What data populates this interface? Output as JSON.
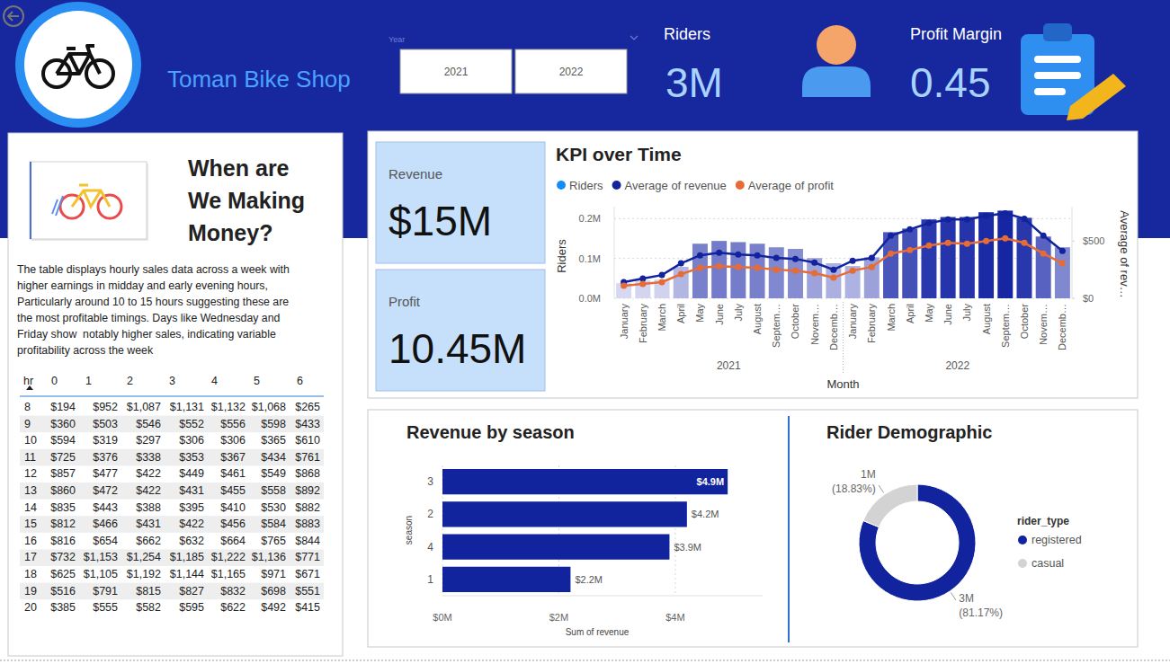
{
  "header": {
    "title": "Toman Bike Shop",
    "slicer": {
      "label": "Year",
      "options": [
        "2021",
        "2022"
      ]
    }
  },
  "kpis": [
    {
      "label": "Riders",
      "value": "3M"
    },
    {
      "label": "Profit Margin",
      "value": "0.45"
    },
    {
      "label": "Revenue",
      "value": "$15M"
    },
    {
      "label": "Profit",
      "value": "10.45M"
    }
  ],
  "panel": {
    "title": [
      "When are",
      "We Making",
      "Money?"
    ],
    "paragraph": [
      "The table displays hourly sales data across a week with",
      "higher earnings in midday and early evening hours,",
      "Particularly around 10 to 15 hours suggesting these are",
      "the most profitable timings. Days like Wednesday and",
      "Friday show  notably higher sales, indicating variable",
      "profitability across the week"
    ]
  },
  "table": {
    "columns": [
      "hr",
      "0",
      "1",
      "2",
      "3",
      "4",
      "5",
      "6"
    ],
    "rows": [
      [
        "8",
        "$194",
        "$952",
        "$1,087",
        "$1,131",
        "$1,132",
        "$1,068",
        "$265"
      ],
      [
        "9",
        "$360",
        "$503",
        "$546",
        "$552",
        "$556",
        "$598",
        "$433"
      ],
      [
        "10",
        "$594",
        "$319",
        "$297",
        "$306",
        "$306",
        "$365",
        "$610"
      ],
      [
        "11",
        "$725",
        "$376",
        "$338",
        "$353",
        "$367",
        "$434",
        "$761"
      ],
      [
        "12",
        "$857",
        "$477",
        "$422",
        "$449",
        "$461",
        "$549",
        "$868"
      ],
      [
        "13",
        "$860",
        "$472",
        "$422",
        "$431",
        "$455",
        "$558",
        "$892"
      ],
      [
        "14",
        "$835",
        "$443",
        "$388",
        "$395",
        "$410",
        "$530",
        "$882"
      ],
      [
        "15",
        "$812",
        "$466",
        "$431",
        "$422",
        "$456",
        "$584",
        "$883"
      ],
      [
        "16",
        "$816",
        "$654",
        "$662",
        "$632",
        "$664",
        "$765",
        "$844"
      ],
      [
        "17",
        "$732",
        "$1,153",
        "$1,254",
        "$1,185",
        "$1,222",
        "$1,136",
        "$771"
      ],
      [
        "18",
        "$625",
        "$1,105",
        "$1,192",
        "$1,144",
        "$1,165",
        "$971",
        "$671"
      ],
      [
        "19",
        "$516",
        "$791",
        "$815",
        "$827",
        "$832",
        "$698",
        "$551"
      ],
      [
        "20",
        "$385",
        "$555",
        "$582",
        "$595",
        "$622",
        "$492",
        "$415"
      ]
    ]
  },
  "chart_data": [
    {
      "type": "combo",
      "title": "KPI over Time",
      "categories": [
        "January",
        "February",
        "March",
        "April",
        "May",
        "June",
        "July",
        "August",
        "Septem…",
        "October",
        "Novem…",
        "Decemb…",
        "January",
        "February",
        "March",
        "April",
        "May",
        "June",
        "July",
        "August",
        "Septem…",
        "October",
        "Novem…",
        "Decemb…"
      ],
      "category_groups": [
        "2021",
        "2022"
      ],
      "x_label": "Month",
      "y_label": "Riders",
      "y2_label": "Average of rev…",
      "ylim": [
        0,
        230000
      ],
      "yticks": [
        {
          "value": 0,
          "label": "0.0M"
        },
        {
          "value": 100000,
          "label": "0.1M"
        },
        {
          "value": 200000,
          "label": "0.2M"
        }
      ],
      "y2lim": [
        0,
        800
      ],
      "y2ticks": [
        {
          "value": 0,
          "label": "$0"
        },
        {
          "value": 500,
          "label": "$500"
        }
      ],
      "grid": true,
      "legend": "top",
      "series": [
        {
          "name": "Riders",
          "type": "bar",
          "color": "#118dff",
          "colors": [
            "#d6d8f1",
            "#d2d4f0",
            "#d0d2ef",
            "#b2b6e3",
            "#7880cc",
            "#737bca",
            "#757dcb",
            "#7880cc",
            "#8088cf",
            "#858cd1",
            "#9da2db",
            "#abb0e1",
            "#aeb2e2",
            "#9ca1da",
            "#4a56bb",
            "#4350b8",
            "#2a38ad",
            "#2534ab",
            "#2534ab",
            "#1b2ba5",
            "#1626a2",
            "#2837ac",
            "#5862c0",
            "#8088cf"
          ],
          "values": [
            38000,
            45000,
            47000,
            79000,
            137000,
            144000,
            141000,
            137000,
            128000,
            124000,
            101000,
            88000,
            81000,
            103000,
            166000,
            175000,
            198000,
            204000,
            204000,
            216000,
            220000,
            202000,
            155000,
            128000
          ]
        },
        {
          "name": "Average of revenue",
          "type": "line",
          "axis": "y2",
          "color": "#12239e",
          "marker": "circle",
          "values": [
            141,
            172,
            203,
            305,
            375,
            398,
            383,
            375,
            352,
            344,
            312,
            250,
            328,
            352,
            547,
            602,
            656,
            688,
            688,
            719,
            742,
            695,
            547,
            414
          ]
        },
        {
          "name": "Average of profit",
          "type": "line",
          "axis": "y2",
          "color": "#e66c37",
          "marker": "circle",
          "values": [
            109,
            125,
            141,
            211,
            266,
            281,
            273,
            266,
            250,
            242,
            219,
            180,
            242,
            273,
            391,
            422,
            461,
            484,
            477,
            500,
            523,
            484,
            391,
            305
          ]
        }
      ]
    },
    {
      "type": "bar",
      "orientation": "horizontal",
      "title": "Revenue by season",
      "x_label": "Sum of revenue",
      "y_label": "season",
      "categories": [
        "3",
        "2",
        "4",
        "1"
      ],
      "values": [
        4900000,
        4200000,
        3900000,
        2200000
      ],
      "value_labels": [
        "$4.9M",
        "$4.2M",
        "$3.9M",
        "$2.2M"
      ],
      "color": "#12239e",
      "xlim": [
        0,
        5500000
      ],
      "xticks": [
        {
          "value": 0,
          "label": "$0M"
        },
        {
          "value": 2000000,
          "label": "$2M"
        },
        {
          "value": 4000000,
          "label": "$4M"
        }
      ],
      "grid": true,
      "data_labels": true
    },
    {
      "type": "pie",
      "title": "Rider Demographic",
      "legend_title": "rider_type",
      "categories": [
        "registered",
        "casual"
      ],
      "values": [
        81.17,
        18.83
      ],
      "value_labels": [
        "(81.17%)",
        "(18.83%)"
      ],
      "riders": [
        3000000,
        1000000
      ],
      "rider_labels": [
        "3M",
        "1M"
      ],
      "colors": [
        "#12239e",
        "#d3d3d3"
      ],
      "legend": "right",
      "data_labels": true
    }
  ]
}
